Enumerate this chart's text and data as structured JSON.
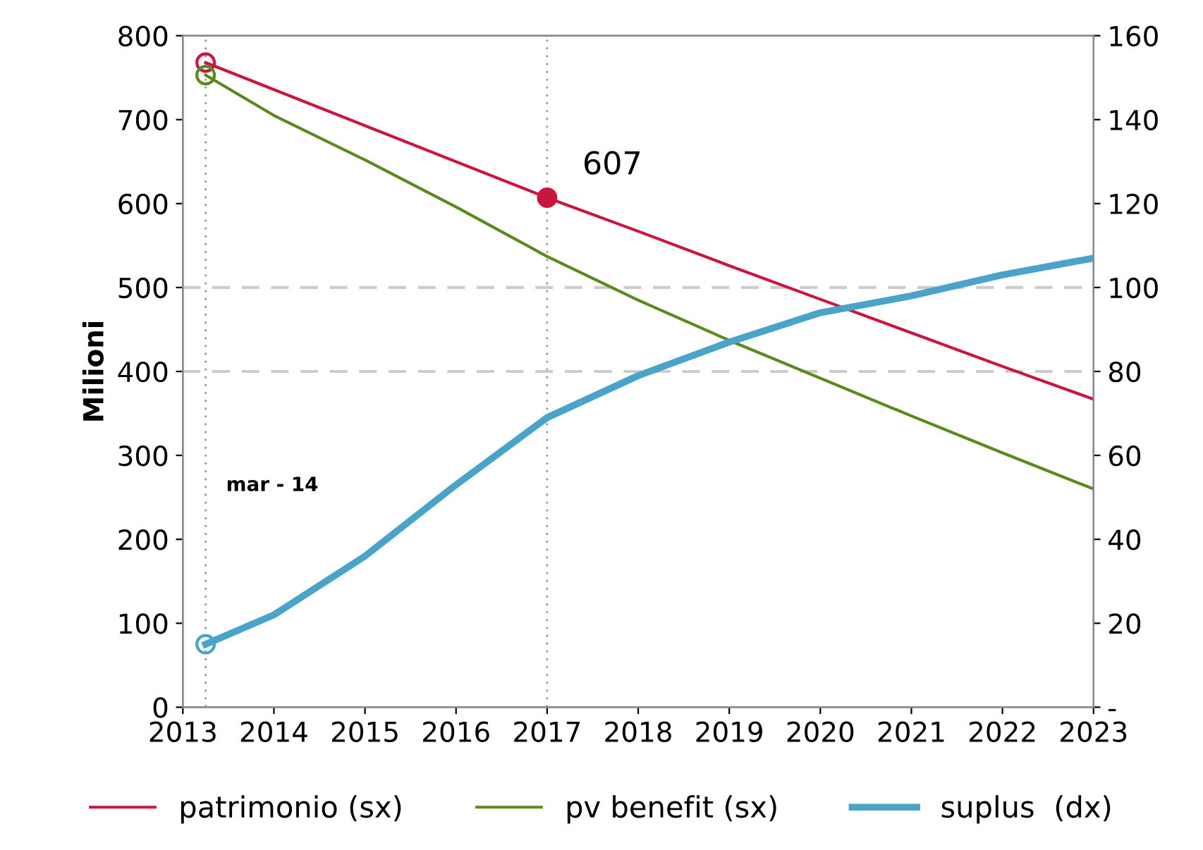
{
  "chart_data": {
    "type": "line",
    "ylabel": "Milioni",
    "xlim": [
      2013,
      2023
    ],
    "xticks": [
      2013,
      2014,
      2015,
      2016,
      2017,
      2018,
      2019,
      2020,
      2021,
      2022,
      2023
    ],
    "ylim": [
      0,
      800
    ],
    "yticks": [
      0,
      100,
      200,
      300,
      400,
      500,
      600,
      700,
      800
    ],
    "y2lim": [
      0,
      160
    ],
    "y2ticks": [
      {
        "value": 0,
        "label": "-"
      },
      20,
      40,
      60,
      80,
      100,
      120,
      140,
      160
    ],
    "series": [
      {
        "name": "patrimonio (sx)",
        "color": "#c8163f",
        "x": [
          2013.25,
          2017,
          2018,
          2019,
          2020,
          2021,
          2022,
          2023
        ],
        "values": [
          768,
          607,
          567,
          526,
          486,
          446,
          406,
          367
        ]
      },
      {
        "name": "pv benefit (sx)",
        "color": "#5a8a1e",
        "x": [
          2013.25,
          2014,
          2015,
          2016,
          2017,
          2018,
          2019,
          2020,
          2021,
          2022,
          2023
        ],
        "values": [
          753,
          705,
          652,
          596,
          537,
          485,
          437,
          392,
          347,
          303,
          260
        ]
      },
      {
        "name": "suplus  (dx)",
        "color": "#4aa3c8",
        "axis": "y2",
        "x": [
          2013.25,
          2014,
          2015,
          2016,
          2017,
          2018,
          2019,
          2020,
          2021,
          2022,
          2023
        ],
        "values": [
          15,
          22,
          36,
          53,
          69,
          79,
          87,
          94,
          98,
          103,
          107
        ]
      },
      {
        "type": "scatter",
        "color": "#c8163f",
        "x": [
          2013.25,
          2017
        ],
        "values": [
          768,
          607
        ]
      },
      {
        "type": "scatter",
        "color": "#5a8a1e",
        "x": [
          2013.25
        ],
        "values": [
          753
        ]
      },
      {
        "type": "scatter",
        "color": "#4aa3c8",
        "axis": "y2",
        "x": [
          2013.25
        ],
        "values": [
          15
        ]
      }
    ],
    "ref_lines": [
      {
        "axis": "x",
        "value": 2013.25,
        "label": "mar - 14",
        "color": "#999999",
        "line_style": "dotted"
      },
      {
        "axis": "x",
        "value": 2017,
        "color": "#999999",
        "line_style": "dotted"
      },
      {
        "axis": "y",
        "value": 400,
        "color": "#cccccc",
        "line_style": "dashed"
      },
      {
        "axis": "y",
        "value": 500,
        "color": "#cccccc",
        "line_style": "dashed"
      }
    ],
    "annotations": [
      {
        "text": "607",
        "x": 2017,
        "y": 607
      }
    ],
    "legend": "bottom",
    "grid": false
  }
}
